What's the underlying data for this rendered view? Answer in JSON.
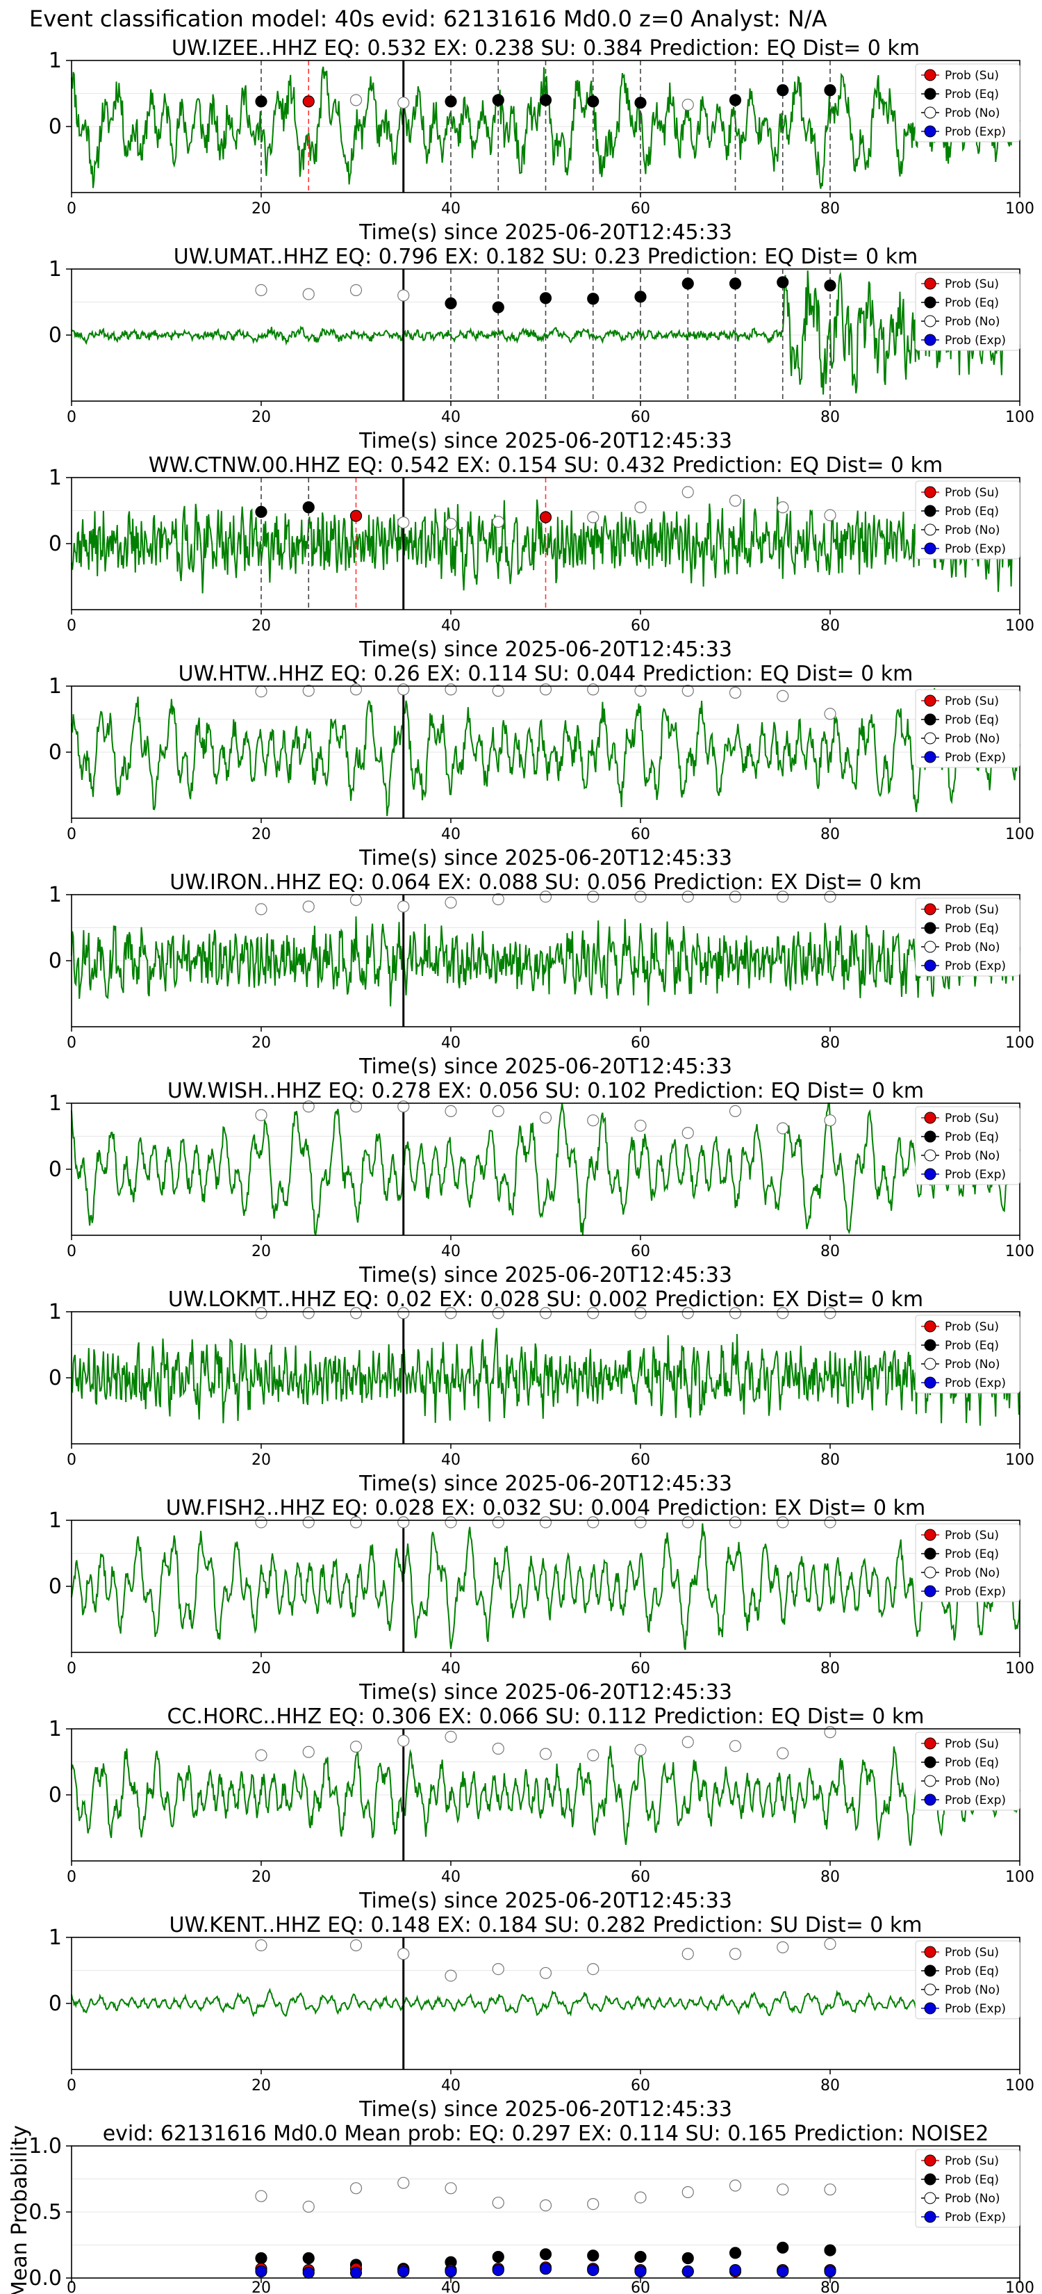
{
  "figure_title": "Event classification model: 40s evid: 62131616 Md0.0 z=0 Analyst: N/A",
  "legend": {
    "entries": [
      {
        "label": "Prob (Su)",
        "color": "#e00000"
      },
      {
        "label": "Prob (Eq)",
        "color": "#000000"
      },
      {
        "label": "Prob (No)",
        "color": "#ffffff"
      },
      {
        "label": "Prob (Exp)",
        "color": "#0000dd"
      }
    ]
  },
  "colors": {
    "waveform": "#008000",
    "ticks_eq": "#444444",
    "ticks_su": "#ff3333",
    "origin_line": "#000000"
  },
  "chart_data": [
    {
      "type": "line",
      "title": "UW.IZEE..HHZ   EQ: 0.532  EX: 0.238  SU: 0.384   Prediction: EQ    Dist= 0 km",
      "xlabel": "Time(s) since 2025-06-20T12:45:33",
      "ylabel": "",
      "xlim": [
        0,
        100
      ],
      "ylim": [
        -1,
        1
      ],
      "xticks": [
        "0",
        "20",
        "40",
        "60",
        "80",
        "100"
      ],
      "yticks": [
        "1",
        "0"
      ],
      "origin_time": 35,
      "wave": {
        "seed": 11,
        "amp": 0.55,
        "period": 4.5,
        "noise": 0.25
      },
      "windows": [
        20,
        25,
        30,
        35,
        40,
        45,
        50,
        55,
        60,
        65,
        70,
        75,
        80
      ],
      "predicted": [
        "EQ",
        "SU",
        "NO",
        "NO",
        "EQ",
        "EQ",
        "EQ",
        "EQ",
        "EQ",
        "NO",
        "EQ",
        "EQ",
        "EQ"
      ],
      "prob": [
        0.38,
        0.38,
        0.4,
        0.36,
        0.38,
        0.4,
        0.4,
        0.38,
        0.36,
        0.33,
        0.4,
        0.55,
        0.55
      ]
    },
    {
      "type": "line",
      "title": "UW.UMAT..HHZ   EQ: 0.796  EX: 0.182  SU: 0.23   Prediction: EQ    Dist= 0 km",
      "xlabel": "Time(s) since 2025-06-20T12:45:33",
      "ylabel": "",
      "xlim": [
        0,
        100
      ],
      "ylim": [
        -1,
        1
      ],
      "xticks": [
        "0",
        "20",
        "40",
        "60",
        "80",
        "100"
      ],
      "yticks": [
        "1",
        "0"
      ],
      "origin_time": 35,
      "wave": {
        "seed": 23,
        "amp": 0.06,
        "period": 3,
        "noise": 0.05,
        "burst_start": 75,
        "burst_amp": 0.5
      },
      "windows": [
        20,
        25,
        30,
        35,
        40,
        45,
        50,
        55,
        60,
        65,
        70,
        75,
        80
      ],
      "predicted": [
        "NO",
        "NO",
        "NO",
        "NO",
        "EQ",
        "EQ",
        "EQ",
        "EQ",
        "EQ",
        "EQ",
        "EQ",
        "EQ",
        "EQ"
      ],
      "prob": [
        0.68,
        0.62,
        0.68,
        0.6,
        0.48,
        0.42,
        0.56,
        0.55,
        0.58,
        0.78,
        0.78,
        0.8,
        0.75
      ]
    },
    {
      "type": "line",
      "title": "WW.CTNW.00.HHZ   EQ: 0.542  EX: 0.154  SU: 0.432   Prediction: EQ    Dist= 0 km",
      "xlabel": "Time(s) since 2025-06-20T12:45:33",
      "ylabel": "",
      "xlim": [
        0,
        100
      ],
      "ylim": [
        -1,
        1
      ],
      "xticks": [
        "0",
        "20",
        "40",
        "60",
        "80",
        "100"
      ],
      "yticks": [
        "1",
        "0"
      ],
      "origin_time": 35,
      "wave": {
        "seed": 37,
        "amp": 0.3,
        "period": 1.2,
        "noise": 0.35
      },
      "windows": [
        20,
        25,
        30,
        35,
        40,
        45,
        50,
        55,
        60,
        65,
        70,
        75,
        80
      ],
      "predicted": [
        "EQ",
        "EQ",
        "SU",
        "NO",
        "NO",
        "NO",
        "SU",
        "NO",
        "NO",
        "NO",
        "NO",
        "NO",
        "NO"
      ],
      "prob": [
        0.48,
        0.55,
        0.42,
        0.32,
        0.3,
        0.33,
        0.4,
        0.4,
        0.55,
        0.78,
        0.65,
        0.55,
        0.43
      ]
    },
    {
      "type": "line",
      "title": "UW.HTW..HHZ   EQ: 0.26  EX: 0.114  SU: 0.044   Prediction: EQ    Dist= 0 km",
      "xlabel": "Time(s) since 2025-06-20T12:45:33",
      "ylabel": "",
      "xlim": [
        0,
        100
      ],
      "ylim": [
        -1,
        1
      ],
      "xticks": [
        "0",
        "20",
        "40",
        "60",
        "80",
        "100"
      ],
      "yticks": [
        "1",
        "0"
      ],
      "origin_time": 35,
      "wave": {
        "seed": 41,
        "amp": 0.55,
        "period": 3.5,
        "noise": 0.18
      },
      "windows": [
        20,
        25,
        30,
        35,
        40,
        45,
        50,
        55,
        60,
        65,
        70,
        75,
        80
      ],
      "predicted": [
        "NO",
        "NO",
        "NO",
        "NO",
        "NO",
        "NO",
        "NO",
        "NO",
        "NO",
        "NO",
        "NO",
        "NO",
        "NO"
      ],
      "prob": [
        0.92,
        0.93,
        0.95,
        0.95,
        0.95,
        0.93,
        0.95,
        0.95,
        0.93,
        0.93,
        0.9,
        0.85,
        0.58
      ]
    },
    {
      "type": "line",
      "title": "UW.IRON..HHZ   EQ: 0.064  EX: 0.088  SU: 0.056   Prediction: EX    Dist= 0 km",
      "xlabel": "Time(s) since 2025-06-20T12:45:33",
      "ylabel": "",
      "xlim": [
        0,
        100
      ],
      "ylim": [
        -1,
        1
      ],
      "xticks": [
        "0",
        "20",
        "40",
        "60",
        "80",
        "100"
      ],
      "yticks": [
        "1",
        "0"
      ],
      "origin_time": 35,
      "wave": {
        "seed": 53,
        "amp": 0.3,
        "period": 1.5,
        "noise": 0.3
      },
      "windows": [
        20,
        25,
        30,
        35,
        40,
        45,
        50,
        55,
        60,
        65,
        70,
        75,
        80
      ],
      "predicted": [
        "NO",
        "NO",
        "NO",
        "NO",
        "NO",
        "NO",
        "NO",
        "NO",
        "NO",
        "NO",
        "NO",
        "NO",
        "NO"
      ],
      "prob": [
        0.78,
        0.82,
        0.92,
        0.82,
        0.88,
        0.93,
        0.97,
        0.97,
        0.97,
        0.97,
        0.97,
        0.97,
        0.97
      ]
    },
    {
      "type": "line",
      "title": "UW.WISH..HHZ   EQ: 0.278  EX: 0.056  SU: 0.102   Prediction: EQ    Dist= 0 km",
      "xlabel": "Time(s) since 2025-06-20T12:45:33",
      "ylabel": "",
      "xlim": [
        0,
        100
      ],
      "ylim": [
        -1,
        1
      ],
      "xticks": [
        "0",
        "20",
        "40",
        "60",
        "80",
        "100"
      ],
      "yticks": [
        "1",
        "0"
      ],
      "origin_time": 35,
      "wave": {
        "seed": 67,
        "amp": 0.65,
        "period": 4,
        "noise": 0.12
      },
      "windows": [
        20,
        25,
        30,
        35,
        40,
        45,
        50,
        55,
        60,
        65,
        70,
        75,
        80
      ],
      "predicted": [
        "NO",
        "NO",
        "NO",
        "NO",
        "NO",
        "NO",
        "NO",
        "NO",
        "NO",
        "NO",
        "NO",
        "NO",
        "NO"
      ],
      "prob": [
        0.82,
        0.95,
        0.95,
        0.95,
        0.88,
        0.88,
        0.78,
        0.74,
        0.66,
        0.55,
        0.88,
        0.62,
        0.74
      ]
    },
    {
      "type": "line",
      "title": "UW.LOKMT..HHZ   EQ: 0.02  EX: 0.028  SU: 0.002   Prediction: EX    Dist= 0 km",
      "xlabel": "Time(s) since 2025-06-20T12:45:33",
      "ylabel": "",
      "xlim": [
        0,
        100
      ],
      "ylim": [
        -1,
        1
      ],
      "xticks": [
        "0",
        "20",
        "40",
        "60",
        "80",
        "100"
      ],
      "yticks": [
        "1",
        "0"
      ],
      "origin_time": 35,
      "wave": {
        "seed": 71,
        "amp": 0.35,
        "period": 1.4,
        "noise": 0.3
      },
      "windows": [
        20,
        25,
        30,
        35,
        40,
        45,
        50,
        55,
        60,
        65,
        70,
        75,
        80
      ],
      "predicted": [
        "NO",
        "NO",
        "NO",
        "NO",
        "NO",
        "NO",
        "NO",
        "NO",
        "NO",
        "NO",
        "NO",
        "NO",
        "NO"
      ],
      "prob": [
        0.98,
        0.98,
        0.98,
        0.98,
        0.98,
        0.98,
        0.98,
        0.98,
        0.98,
        0.98,
        0.98,
        0.98,
        0.98
      ]
    },
    {
      "type": "line",
      "title": "UW.FISH2..HHZ   EQ: 0.028  EX: 0.032  SU: 0.004   Prediction: EX    Dist= 0 km",
      "xlabel": "Time(s) since 2025-06-20T12:45:33",
      "ylabel": "",
      "xlim": [
        0,
        100
      ],
      "ylim": [
        -1,
        1
      ],
      "xticks": [
        "0",
        "20",
        "40",
        "60",
        "80",
        "100"
      ],
      "yticks": [
        "1",
        "0"
      ],
      "origin_time": 35,
      "wave": {
        "seed": 83,
        "amp": 0.6,
        "period": 3.5,
        "noise": 0.12
      },
      "windows": [
        20,
        25,
        30,
        35,
        40,
        45,
        50,
        55,
        60,
        65,
        70,
        75,
        80
      ],
      "predicted": [
        "NO",
        "NO",
        "NO",
        "NO",
        "NO",
        "NO",
        "NO",
        "NO",
        "NO",
        "NO",
        "NO",
        "NO",
        "NO"
      ],
      "prob": [
        0.97,
        0.97,
        0.97,
        0.97,
        0.97,
        0.97,
        0.97,
        0.97,
        0.97,
        0.97,
        0.97,
        0.97,
        0.97
      ]
    },
    {
      "type": "line",
      "title": "CC.HORC..HHZ   EQ: 0.306  EX: 0.066  SU: 0.112   Prediction: EQ    Dist= 0 km",
      "xlabel": "Time(s) since 2025-06-20T12:45:33",
      "ylabel": "",
      "xlim": [
        0,
        100
      ],
      "ylim": [
        -1,
        1
      ],
      "xticks": [
        "0",
        "20",
        "40",
        "60",
        "80",
        "100"
      ],
      "yticks": [
        "1",
        "0"
      ],
      "origin_time": 35,
      "wave": {
        "seed": 97,
        "amp": 0.45,
        "period": 3,
        "noise": 0.12
      },
      "windows": [
        20,
        25,
        30,
        35,
        40,
        45,
        50,
        55,
        60,
        65,
        70,
        75,
        80
      ],
      "predicted": [
        "NO",
        "NO",
        "NO",
        "NO",
        "NO",
        "NO",
        "NO",
        "NO",
        "NO",
        "NO",
        "NO",
        "NO",
        "NO"
      ],
      "prob": [
        0.6,
        0.65,
        0.73,
        0.82,
        0.88,
        0.7,
        0.62,
        0.6,
        0.68,
        0.8,
        0.74,
        0.63,
        0.95
      ]
    },
    {
      "type": "line",
      "title": "UW.KENT..HHZ   EQ: 0.148  EX: 0.184  SU: 0.282   Prediction: SU    Dist= 0 km",
      "xlabel": "Time(s) since 2025-06-20T12:45:33",
      "ylabel": "",
      "xlim": [
        0,
        100
      ],
      "ylim": [
        -1,
        1
      ],
      "xticks": [
        "0",
        "20",
        "40",
        "60",
        "80",
        "100"
      ],
      "yticks": [
        "1",
        "0"
      ],
      "origin_time": 35,
      "wave": {
        "seed": 101,
        "amp": 0.12,
        "period": 3,
        "noise": 0.03
      },
      "windows": [
        20,
        30,
        35,
        40,
        45,
        50,
        55,
        65,
        70,
        75,
        80
      ],
      "predicted": [
        "NO",
        "NO",
        "NO",
        "NO",
        "NO",
        "NO",
        "NO",
        "NO",
        "NO",
        "NO",
        "NO"
      ],
      "prob": [
        0.88,
        0.88,
        0.75,
        0.42,
        0.52,
        0.46,
        0.52,
        0.75,
        0.75,
        0.85,
        0.9
      ]
    },
    {
      "type": "scatter",
      "title": "evid: 62131616  Md0.0   Mean prob:   EQ: 0.297  EX: 0.114  SU: 0.165   Prediction: NOISE2",
      "xlabel": "",
      "ylabel": "Mean Probability",
      "xlim": [
        0,
        100
      ],
      "ylim": [
        0,
        1.0
      ],
      "xticks": [
        "0",
        "20",
        "40",
        "60",
        "80",
        "100"
      ],
      "yticks": [
        "1.0",
        "0.5",
        "0.0"
      ],
      "x": [
        20,
        25,
        30,
        35,
        40,
        45,
        50,
        55,
        60,
        65,
        70,
        75,
        80
      ],
      "series": [
        {
          "name": "Prob (No)",
          "values": [
            0.62,
            0.54,
            0.68,
            0.72,
            0.68,
            0.57,
            0.55,
            0.56,
            0.61,
            0.65,
            0.7,
            0.67,
            0.67
          ]
        },
        {
          "name": "Prob (Eq)",
          "values": [
            0.15,
            0.15,
            0.1,
            0.07,
            0.12,
            0.16,
            0.18,
            0.17,
            0.16,
            0.15,
            0.19,
            0.23,
            0.21
          ]
        },
        {
          "name": "Prob (Su)",
          "values": [
            0.07,
            0.06,
            0.07,
            0.06,
            0.06,
            0.07,
            0.08,
            0.07,
            0.06,
            0.05,
            0.05,
            0.06,
            0.06
          ]
        },
        {
          "name": "Prob (Exp)",
          "values": [
            0.05,
            0.04,
            0.04,
            0.05,
            0.05,
            0.06,
            0.07,
            0.06,
            0.05,
            0.05,
            0.06,
            0.05,
            0.05
          ]
        }
      ]
    }
  ]
}
